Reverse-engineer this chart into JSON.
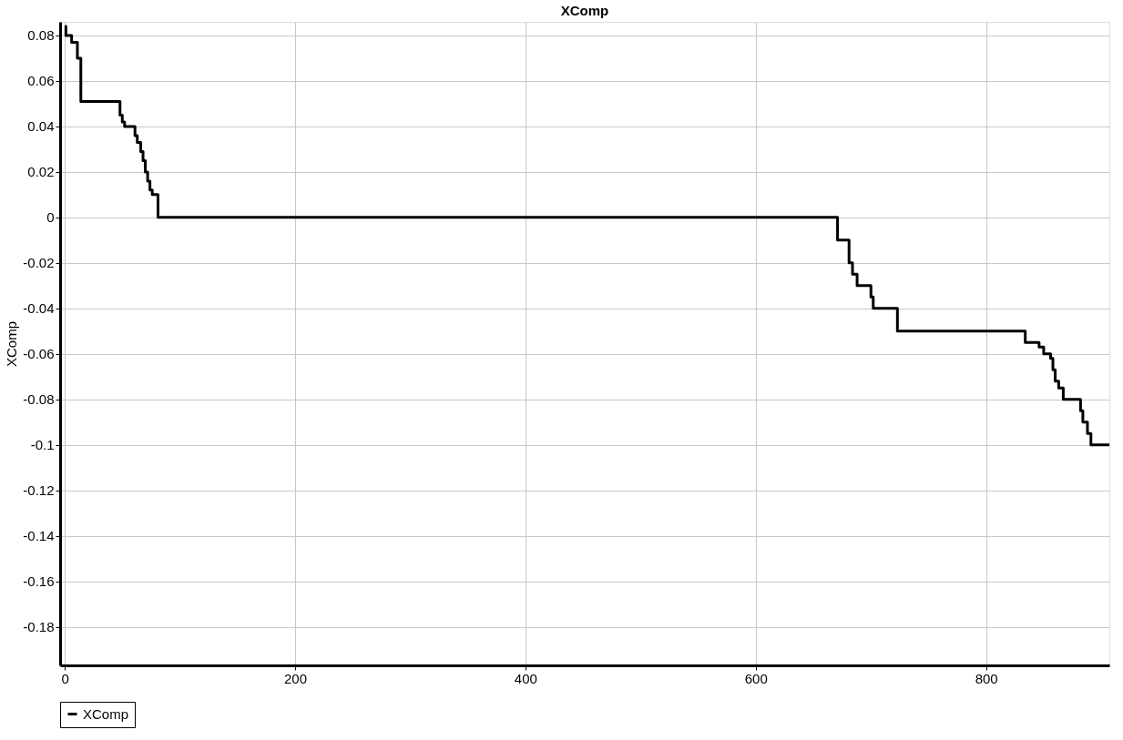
{
  "chart_data": {
    "type": "step",
    "title": "XComp",
    "ylabel": "XComp",
    "x": [
      0,
      1,
      6,
      11,
      14,
      48,
      50,
      52,
      61,
      63,
      66,
      68,
      70,
      72,
      74,
      76,
      81,
      665,
      671,
      681,
      684,
      688,
      700,
      702,
      723,
      834,
      846,
      850,
      856,
      858,
      860,
      863,
      867,
      882,
      884,
      888,
      891,
      907
    ],
    "series": [
      {
        "name": "XComp",
        "color": "#000000",
        "values": [
          0.084,
          0.08,
          0.077,
          0.07,
          0.051,
          0.045,
          0.042,
          0.04,
          0.036,
          0.033,
          0.029,
          0.025,
          0.02,
          0.016,
          0.012,
          0.01,
          0,
          0,
          -0.01,
          -0.02,
          -0.025,
          -0.03,
          -0.035,
          -0.04,
          -0.05,
          -0.055,
          -0.057,
          -0.06,
          -0.062,
          -0.067,
          -0.072,
          -0.075,
          -0.08,
          -0.085,
          -0.09,
          -0.095,
          -0.1,
          -0.1
        ]
      }
    ],
    "xlim": [
      -4,
      907
    ],
    "ylim": [
      -0.197,
      0.086
    ],
    "xticks": [
      0,
      200,
      400,
      600,
      800
    ],
    "yticks": [
      0.08,
      0.06,
      0.04,
      0.02,
      0,
      -0.02,
      -0.04,
      -0.06,
      -0.08,
      -0.1,
      -0.12,
      -0.14,
      -0.16,
      -0.18
    ],
    "grid": true,
    "legend": "bottom",
    "marker": "none",
    "line_style": "solid"
  }
}
